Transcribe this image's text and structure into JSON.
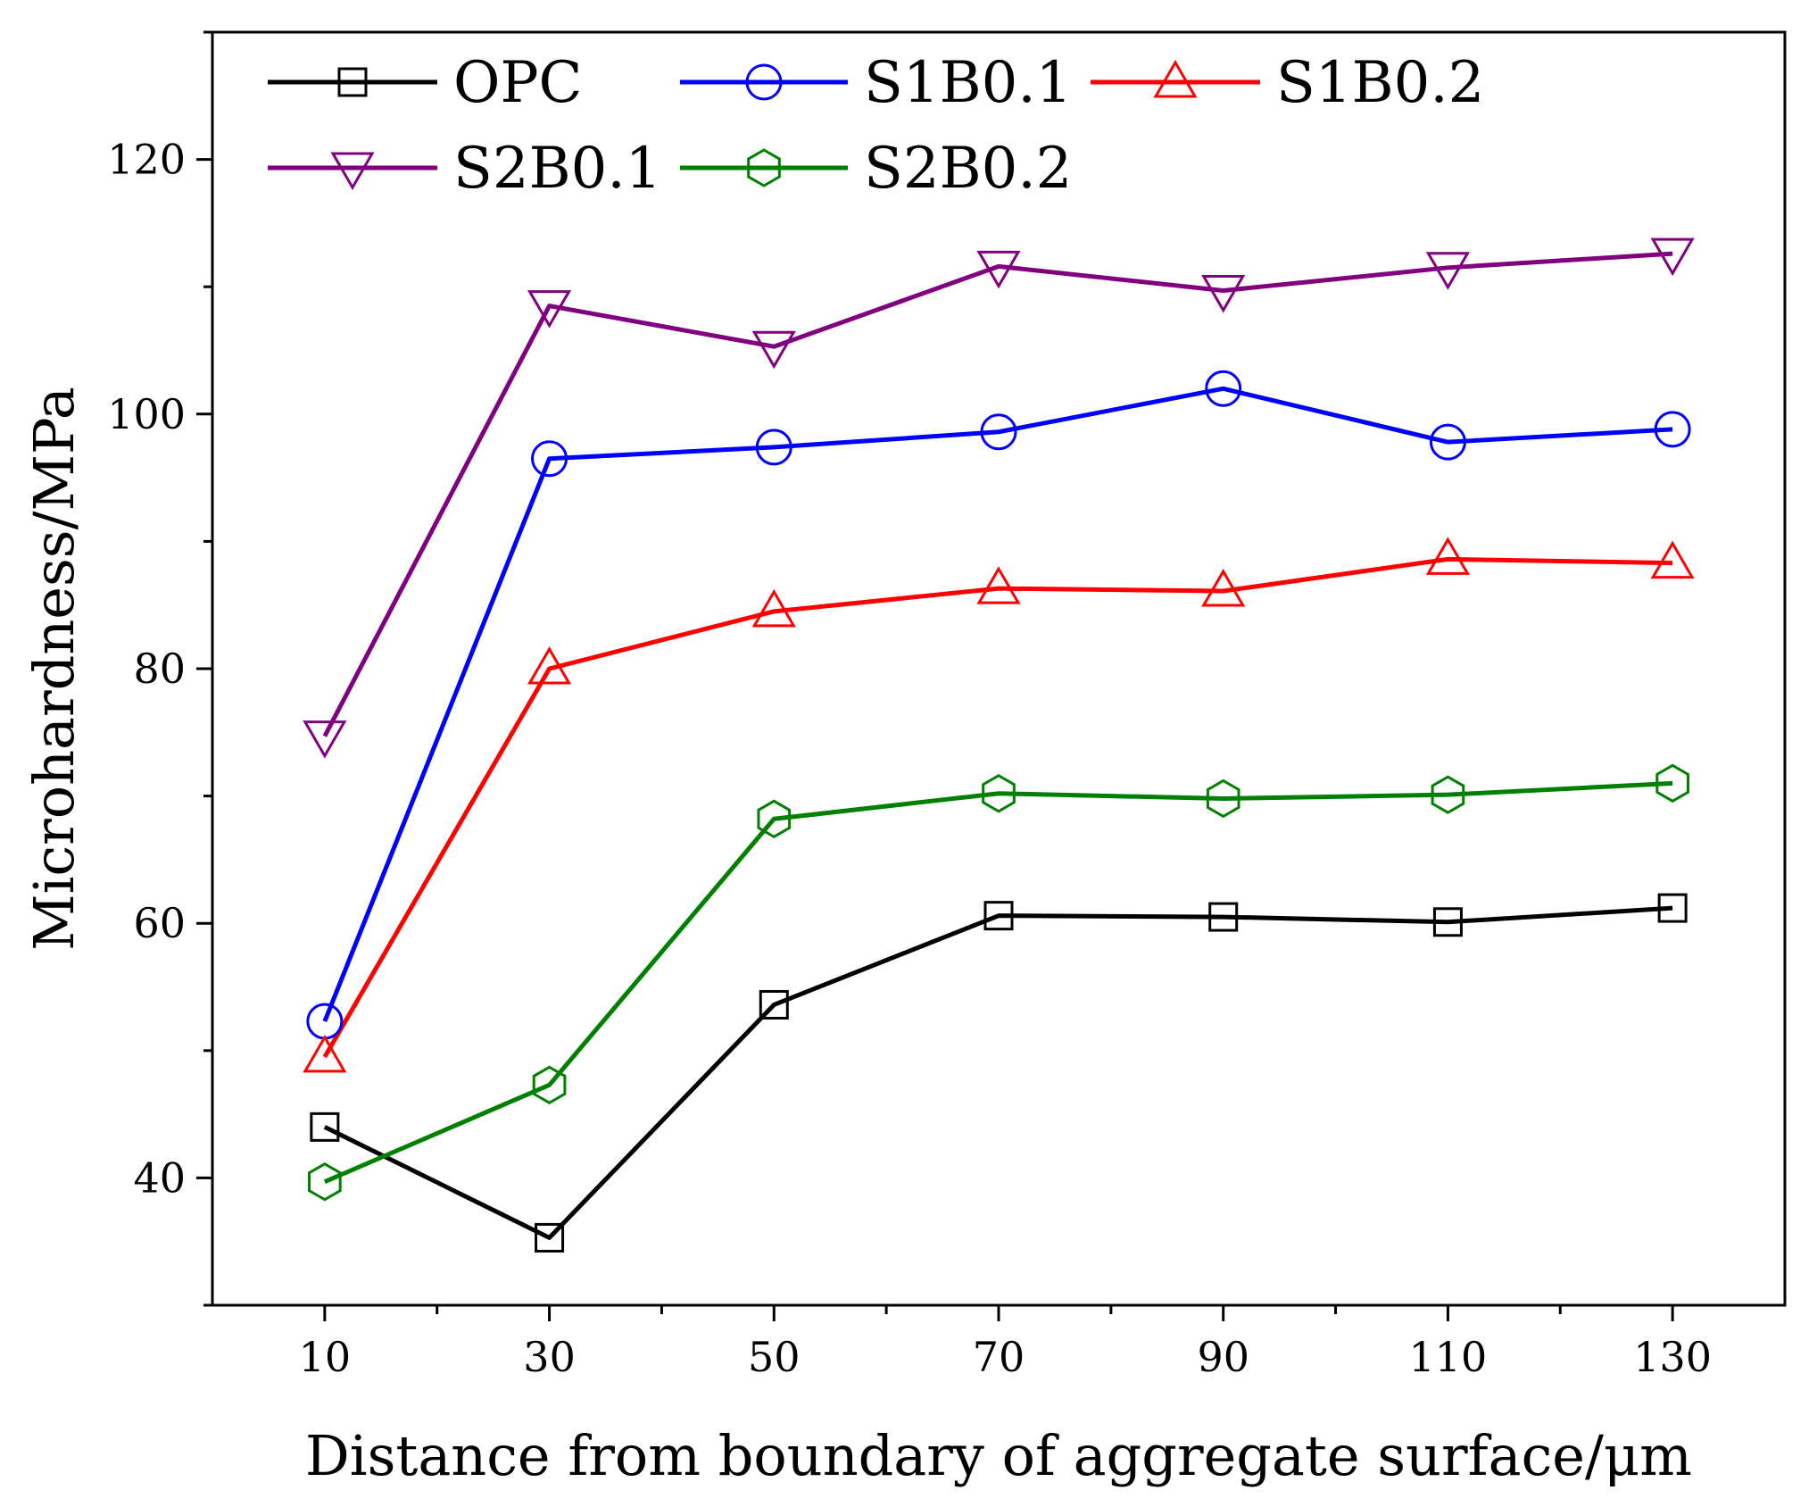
{
  "chart_data": {
    "type": "line",
    "title": "",
    "xlabel": "Distance from boundary of aggregate surface/μm",
    "ylabel": "Microhardness/MPa",
    "x": [
      10,
      30,
      50,
      70,
      90,
      110,
      130
    ],
    "xticks": [
      10,
      30,
      50,
      70,
      90,
      110,
      130
    ],
    "xlim": [
      0,
      140
    ],
    "yticks": [
      40,
      60,
      80,
      100,
      120
    ],
    "ylim": [
      30,
      130
    ],
    "grid": false,
    "legend_position": "top-left",
    "series": [
      {
        "name": "OPC",
        "color": "#000000",
        "marker": "square",
        "values": [
          44.0,
          35.3,
          53.6,
          60.6,
          60.5,
          60.1,
          61.2
        ]
      },
      {
        "name": "S1B0.1",
        "color": "#0000ff",
        "marker": "circle",
        "values": [
          52.3,
          96.5,
          97.4,
          98.6,
          102.0,
          97.8,
          98.8
        ]
      },
      {
        "name": "S1B0.2",
        "color": "#ff0000",
        "marker": "triangle-up",
        "values": [
          49.5,
          80.0,
          84.5,
          86.3,
          86.1,
          88.6,
          88.3
        ]
      },
      {
        "name": "S2B0.1",
        "color": "#800080",
        "marker": "triangle-down",
        "values": [
          74.7,
          108.5,
          105.3,
          111.6,
          109.7,
          111.5,
          112.6
        ]
      },
      {
        "name": "S2B0.2",
        "color": "#008000",
        "marker": "hexagon",
        "values": [
          39.7,
          47.3,
          68.2,
          70.2,
          69.8,
          70.1,
          71.0
        ]
      }
    ]
  }
}
